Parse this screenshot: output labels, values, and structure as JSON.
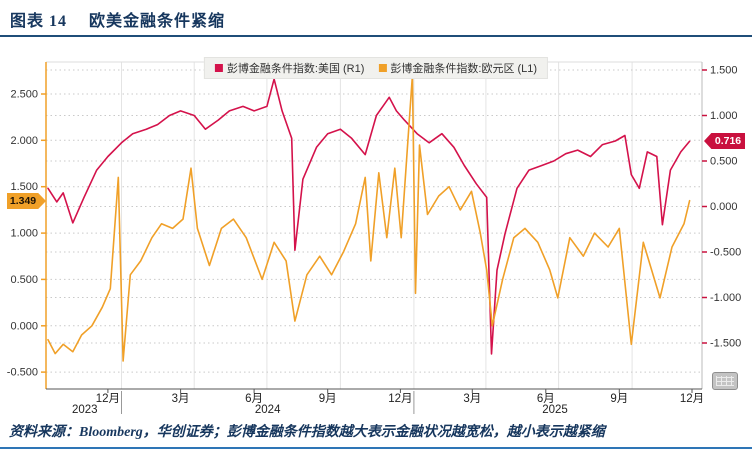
{
  "header": {
    "figure_label": "图表 14",
    "title": "欧美金融条件紧缩"
  },
  "legend": {
    "items": [
      {
        "label": "彭博金融条件指数:美国 (R1)",
        "color": "#D4124B"
      },
      {
        "label": "彭博金融条件指数:欧元区 (L1)",
        "color": "#F0A028"
      }
    ]
  },
  "chart_data": {
    "type": "line",
    "title": "欧美金融条件紧缩",
    "grid": true,
    "legend_position": "top-center",
    "x_axis": {
      "range": [
        "2023-10-01",
        "2025-12-20"
      ],
      "month_ticks": [
        {
          "date": "2023-12-15",
          "label": "12月"
        },
        {
          "date": "2024-03-15",
          "label": "3月"
        },
        {
          "date": "2024-06-15",
          "label": "6月"
        },
        {
          "date": "2024-09-15",
          "label": "9月"
        },
        {
          "date": "2024-12-15",
          "label": "12月"
        },
        {
          "date": "2025-03-15",
          "label": "3月"
        },
        {
          "date": "2025-06-15",
          "label": "6月"
        },
        {
          "date": "2025-09-15",
          "label": "9月"
        },
        {
          "date": "2025-12-15",
          "label": "12月"
        }
      ],
      "year_sections": [
        {
          "label": "2023",
          "start": "2023-10-01",
          "end": "2024-01-01"
        },
        {
          "label": "2024",
          "start": "2024-01-01",
          "end": "2025-01-01"
        },
        {
          "label": "2025",
          "start": "2025-01-01",
          "end": "2025-12-20"
        }
      ],
      "quarter_gridlines": [
        "2024-01-01",
        "2024-04-01",
        "2024-07-01",
        "2024-10-01",
        "2025-01-01",
        "2025-04-01",
        "2025-07-01",
        "2025-10-01"
      ]
    },
    "left_axis": {
      "series": "彭博金融条件指数:欧元区 (L1)",
      "color": "#F0A028",
      "ticks": [
        2.5,
        2.0,
        1.5,
        1.0,
        0.5,
        0.0,
        -0.5
      ],
      "tick_format": "0.000",
      "last_value_label": "1.349"
    },
    "right_axis": {
      "series": "彭博金融条件指数:美国 (R1)",
      "color": "#C9103E",
      "ticks": [
        1.5,
        1.0,
        0.5,
        0.0,
        -0.5,
        -1.0,
        -1.5
      ],
      "tick_format": "0.000",
      "last_value_label": "0.716"
    },
    "series": [
      {
        "name": "彭博金融条件指数:美国 (R1)",
        "axis": "right",
        "color": "#D4124B",
        "points": [
          [
            "2023-10-01",
            0.2
          ],
          [
            "2023-10-12",
            0.05
          ],
          [
            "2023-10-20",
            0.15
          ],
          [
            "2023-11-01",
            -0.18
          ],
          [
            "2023-11-15",
            0.1
          ],
          [
            "2023-12-01",
            0.4
          ],
          [
            "2023-12-15",
            0.55
          ],
          [
            "2024-01-01",
            0.7
          ],
          [
            "2024-01-15",
            0.8
          ],
          [
            "2024-02-01",
            0.85
          ],
          [
            "2024-02-15",
            0.9
          ],
          [
            "2024-03-01",
            1.0
          ],
          [
            "2024-03-15",
            1.05
          ],
          [
            "2024-04-01",
            1.0
          ],
          [
            "2024-04-15",
            0.85
          ],
          [
            "2024-05-01",
            0.95
          ],
          [
            "2024-05-15",
            1.05
          ],
          [
            "2024-06-01",
            1.1
          ],
          [
            "2024-06-15",
            1.05
          ],
          [
            "2024-07-01",
            1.1
          ],
          [
            "2024-07-10",
            1.4
          ],
          [
            "2024-07-20",
            1.05
          ],
          [
            "2024-08-01",
            0.75
          ],
          [
            "2024-08-05",
            -0.48
          ],
          [
            "2024-08-15",
            0.3
          ],
          [
            "2024-09-01",
            0.65
          ],
          [
            "2024-09-15",
            0.8
          ],
          [
            "2024-10-01",
            0.85
          ],
          [
            "2024-10-15",
            0.75
          ],
          [
            "2024-11-01",
            0.57
          ],
          [
            "2024-11-15",
            1.0
          ],
          [
            "2024-12-01",
            1.2
          ],
          [
            "2024-12-10",
            1.05
          ],
          [
            "2024-12-20",
            0.95
          ],
          [
            "2025-01-05",
            0.8
          ],
          [
            "2025-01-20",
            0.7
          ],
          [
            "2025-02-05",
            0.8
          ],
          [
            "2025-02-20",
            0.65
          ],
          [
            "2025-03-05",
            0.45
          ],
          [
            "2025-03-20",
            0.25
          ],
          [
            "2025-04-02",
            0.1
          ],
          [
            "2025-04-08",
            -1.62
          ],
          [
            "2025-04-15",
            -0.7
          ],
          [
            "2025-04-25",
            -0.3
          ],
          [
            "2025-05-10",
            0.2
          ],
          [
            "2025-05-25",
            0.4
          ],
          [
            "2025-06-10",
            0.45
          ],
          [
            "2025-06-25",
            0.5
          ],
          [
            "2025-07-10",
            0.58
          ],
          [
            "2025-07-25",
            0.62
          ],
          [
            "2025-08-10",
            0.55
          ],
          [
            "2025-08-25",
            0.68
          ],
          [
            "2025-09-10",
            0.72
          ],
          [
            "2025-09-22",
            0.78
          ],
          [
            "2025-09-30",
            0.35
          ],
          [
            "2025-10-10",
            0.2
          ],
          [
            "2025-10-20",
            0.6
          ],
          [
            "2025-11-01",
            0.55
          ],
          [
            "2025-11-08",
            -0.2
          ],
          [
            "2025-11-18",
            0.4
          ],
          [
            "2025-12-01",
            0.6
          ],
          [
            "2025-12-12",
            0.716
          ]
        ]
      },
      {
        "name": "彭博金融条件指数:欧元区 (L1)",
        "axis": "left",
        "color": "#F0A028",
        "points": [
          [
            "2023-10-01",
            -0.15
          ],
          [
            "2023-10-10",
            -0.3
          ],
          [
            "2023-10-20",
            -0.2
          ],
          [
            "2023-11-01",
            -0.28
          ],
          [
            "2023-11-12",
            -0.1
          ],
          [
            "2023-11-25",
            0.0
          ],
          [
            "2023-12-08",
            0.2
          ],
          [
            "2023-12-18",
            0.4
          ],
          [
            "2023-12-28",
            1.6
          ],
          [
            "2024-01-03",
            -0.38
          ],
          [
            "2024-01-12",
            0.55
          ],
          [
            "2024-01-25",
            0.7
          ],
          [
            "2024-02-08",
            0.95
          ],
          [
            "2024-02-20",
            1.1
          ],
          [
            "2024-03-05",
            1.05
          ],
          [
            "2024-03-18",
            1.15
          ],
          [
            "2024-03-28",
            1.7
          ],
          [
            "2024-04-05",
            1.05
          ],
          [
            "2024-04-20",
            0.65
          ],
          [
            "2024-05-05",
            1.05
          ],
          [
            "2024-05-20",
            1.15
          ],
          [
            "2024-06-05",
            0.95
          ],
          [
            "2024-06-25",
            0.5
          ],
          [
            "2024-07-10",
            0.9
          ],
          [
            "2024-07-25",
            0.7
          ],
          [
            "2024-08-05",
            0.05
          ],
          [
            "2024-08-20",
            0.55
          ],
          [
            "2024-09-05",
            0.75
          ],
          [
            "2024-09-20",
            0.55
          ],
          [
            "2024-10-05",
            0.8
          ],
          [
            "2024-10-20",
            1.1
          ],
          [
            "2024-11-01",
            1.6
          ],
          [
            "2024-11-08",
            0.7
          ],
          [
            "2024-11-18",
            1.65
          ],
          [
            "2024-11-28",
            0.95
          ],
          [
            "2024-12-08",
            1.7
          ],
          [
            "2024-12-16",
            0.95
          ],
          [
            "2024-12-30",
            2.7
          ],
          [
            "2025-01-03",
            0.35
          ],
          [
            "2025-01-08",
            1.95
          ],
          [
            "2025-01-18",
            1.2
          ],
          [
            "2025-02-01",
            1.4
          ],
          [
            "2025-02-14",
            1.5
          ],
          [
            "2025-02-28",
            1.25
          ],
          [
            "2025-03-14",
            1.45
          ],
          [
            "2025-03-25",
            1.0
          ],
          [
            "2025-04-02",
            0.6
          ],
          [
            "2025-04-09",
            0.0
          ],
          [
            "2025-04-22",
            0.5
          ],
          [
            "2025-05-06",
            0.95
          ],
          [
            "2025-05-20",
            1.05
          ],
          [
            "2025-06-05",
            0.9
          ],
          [
            "2025-06-20",
            0.6
          ],
          [
            "2025-06-30",
            0.3
          ],
          [
            "2025-07-15",
            0.95
          ],
          [
            "2025-08-01",
            0.75
          ],
          [
            "2025-08-15",
            1.0
          ],
          [
            "2025-09-01",
            0.85
          ],
          [
            "2025-09-15",
            1.05
          ],
          [
            "2025-09-30",
            -0.2
          ],
          [
            "2025-10-15",
            0.9
          ],
          [
            "2025-11-05",
            0.3
          ],
          [
            "2025-11-20",
            0.85
          ],
          [
            "2025-12-05",
            1.1
          ],
          [
            "2025-12-12",
            1.349
          ]
        ]
      }
    ]
  },
  "footer": {
    "source_note": "资料来源：Bloomberg，华创证券；彭博金融条件指数越大表示金融状况越宽松，越小表示越紧缩"
  },
  "export_button": {
    "icon": "table-icon"
  }
}
